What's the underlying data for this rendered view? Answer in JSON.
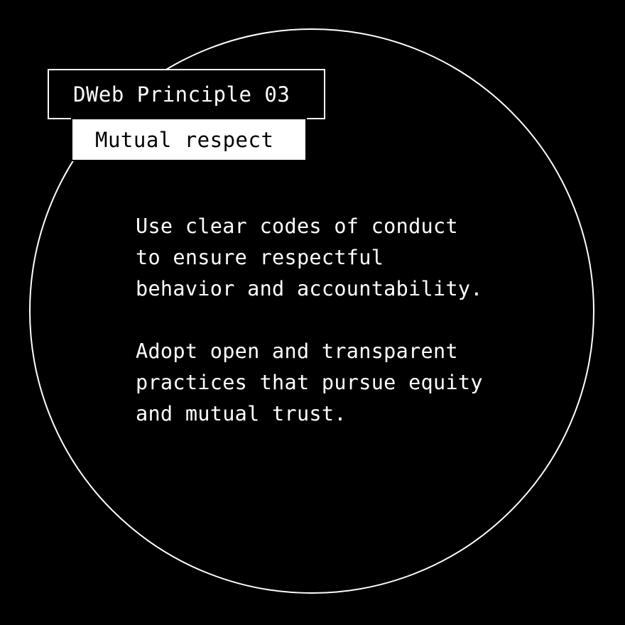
{
  "badge": {
    "principle": "DWeb Principle 03",
    "title": "Mutual respect"
  },
  "body": {
    "paragraphs": [
      {
        "lines": [
          "Use clear codes of conduct",
          "to ensure respectful",
          "behavior and accountability."
        ]
      },
      {
        "lines": [
          "Adopt open and transparent",
          "practices that pursue equity",
          "and mutual trust."
        ]
      }
    ]
  },
  "colors": {
    "background": "#000000",
    "foreground": "#ffffff"
  }
}
